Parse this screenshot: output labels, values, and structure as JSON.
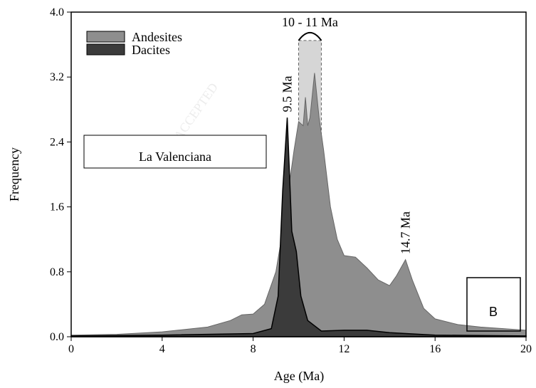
{
  "chart_data": {
    "type": "area",
    "xlabel": "Age (Ma)",
    "ylabel": "Frequency",
    "xlim": [
      0,
      20
    ],
    "ylim": [
      0,
      4
    ],
    "xticks": [
      0,
      4,
      8,
      12,
      16,
      20
    ],
    "yticks": [
      {
        "value": 0,
        "label": "0.0"
      },
      {
        "value": 0.8,
        "label": "0.8"
      },
      {
        "value": 1.6,
        "label": "1.6"
      },
      {
        "value": 2.4,
        "label": "2.4"
      },
      {
        "value": 3.2,
        "label": "3.2"
      },
      {
        "value": 4,
        "label": "4.0"
      }
    ],
    "series": [
      {
        "name": "Andesites",
        "color": "#8e8e8e",
        "x": [
          0,
          2,
          4,
          6,
          7,
          7.5,
          8,
          8.5,
          9,
          9.3,
          9.6,
          9.8,
          10,
          10.2,
          10.3,
          10.4,
          10.5,
          10.7,
          10.9,
          11.1,
          11.4,
          11.7,
          12,
          12.5,
          13,
          13.5,
          14,
          14.3,
          14.7,
          15,
          15.5,
          16,
          17,
          18,
          19,
          20
        ],
        "values": [
          0.02,
          0.03,
          0.06,
          0.12,
          0.2,
          0.27,
          0.28,
          0.4,
          0.8,
          1.3,
          1.9,
          2.3,
          2.65,
          2.6,
          2.95,
          2.6,
          2.7,
          3.25,
          2.7,
          2.3,
          1.6,
          1.2,
          1.0,
          0.98,
          0.85,
          0.7,
          0.63,
          0.75,
          0.95,
          0.7,
          0.35,
          0.22,
          0.15,
          0.12,
          0.1,
          0.08
        ]
      },
      {
        "name": "Dacites",
        "color": "#3b3b3b",
        "x": [
          0,
          4,
          8,
          8.8,
          9.1,
          9.3,
          9.5,
          9.7,
          9.9,
          10.1,
          10.4,
          11,
          12,
          13,
          14,
          16,
          20
        ],
        "values": [
          0.01,
          0.02,
          0.04,
          0.1,
          0.5,
          1.8,
          2.7,
          1.3,
          1.05,
          0.5,
          0.2,
          0.07,
          0.08,
          0.08,
          0.05,
          0.02,
          0.01
        ]
      }
    ],
    "highlight": {
      "x": [
        10,
        11
      ],
      "y": 3.65,
      "label": "10 - 11 Ma"
    },
    "annotations": [
      {
        "text": "9.5 Ma",
        "x": 9.5,
        "y": 2.75
      },
      {
        "text": "14.7 Ma",
        "x": 14.7,
        "y": 1.0
      }
    ],
    "site_label": "La Valenciana",
    "panel_label": "B",
    "watermark": "ACCEPTED"
  }
}
